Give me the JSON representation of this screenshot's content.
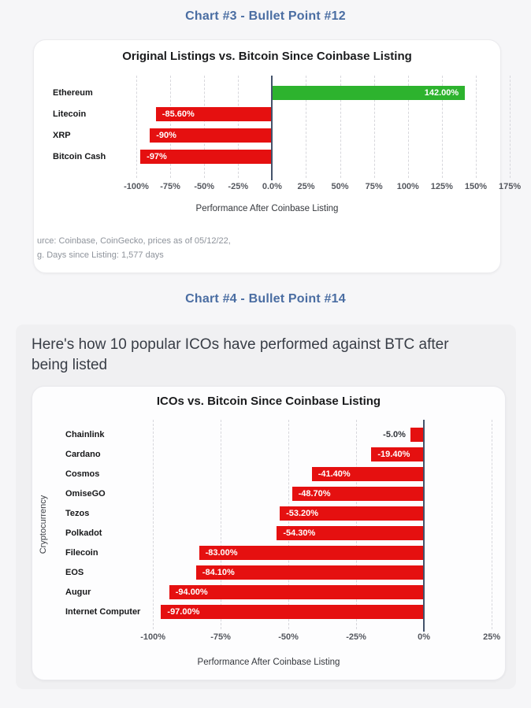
{
  "page": {
    "section1_title": "Chart #3 - Bullet Point #12",
    "section2_title": "Chart #4 - Bullet Point #14",
    "section2_heading": "Here's how 10 popular ICOs have performed against BTC after being listed"
  },
  "colors": {
    "positive_bar": "#2db32e",
    "negative_bar": "#e51010",
    "section_title": "#4a6da2",
    "zero_axis": "#44536b",
    "panel_background": "#f0f0f2"
  },
  "chart_data": [
    {
      "id": "original-listings-vs-bitcoin",
      "type": "bar",
      "orientation": "horizontal",
      "title": "Original Listings vs. Bitcoin Since Coinbase Listing",
      "xlabel": "Performance After Coinbase Listing",
      "ylabel": "",
      "categories": [
        "Ethereum",
        "Litecoin",
        "XRP",
        "Bitcoin Cash"
      ],
      "values": [
        142.0,
        -85.6,
        -90.0,
        -97.0
      ],
      "value_labels": [
        "142.00%",
        "-85.60%",
        "-90%",
        "-97%"
      ],
      "bar_colors": [
        "#2db32e",
        "#e51010",
        "#e51010",
        "#e51010"
      ],
      "label_outside": [
        false,
        false,
        false,
        false
      ],
      "grid": true,
      "legend": false,
      "axis": {
        "min": -175.4,
        "max": 168,
        "ticks": [
          -100,
          -75,
          -50,
          -25,
          0,
          25,
          50,
          75,
          100,
          125,
          150,
          175
        ],
        "tick_labels": [
          "-100%",
          "-75%",
          "-50%",
          "-25%",
          "0.0%",
          "25%",
          "50%",
          "75%",
          "100%",
          "125%",
          "150%",
          "175%"
        ]
      },
      "footnotes": [
        "urce: Coinbase, CoinGecko, prices as of 05/12/22,",
        "g. Days since Listing: 1,577 days"
      ]
    },
    {
      "id": "icos-vs-bitcoin",
      "type": "bar",
      "orientation": "horizontal",
      "title": "ICOs vs. Bitcoin Since Coinbase Listing",
      "xlabel": "Performance After Coinbase Listing",
      "ylabel": "Cryptocurrency",
      "categories": [
        "Chainlink",
        "Cardano",
        "Cosmos",
        "OmiseGO",
        "Tezos",
        "Polkadot",
        "Filecoin",
        "EOS",
        "Augur",
        "Internet Computer"
      ],
      "values": [
        -5.0,
        -19.4,
        -41.4,
        -48.7,
        -53.2,
        -54.3,
        -83.0,
        -84.1,
        -94.0,
        -97.0
      ],
      "value_labels": [
        "-5.0%",
        "-19.40%",
        "-41.40%",
        "-48.70%",
        "-53.20%",
        "-54.30%",
        "-83.00%",
        "-84.10%",
        "-94.00%",
        "-97.00%"
      ],
      "bar_colors": [
        "#e51010",
        "#e51010",
        "#e51010",
        "#e51010",
        "#e51010",
        "#e51010",
        "#e51010",
        "#e51010",
        "#e51010",
        "#e51010"
      ],
      "label_outside": [
        true,
        false,
        false,
        false,
        false,
        false,
        false,
        false,
        false,
        false
      ],
      "grid": true,
      "legend": false,
      "axis": {
        "min": -144.5,
        "max": 29.9,
        "ticks": [
          -100,
          -75,
          -50,
          -25,
          0,
          25
        ],
        "tick_labels": [
          "-100%",
          "-75%",
          "-50%",
          "-25%",
          "0%",
          "25%"
        ]
      }
    }
  ]
}
